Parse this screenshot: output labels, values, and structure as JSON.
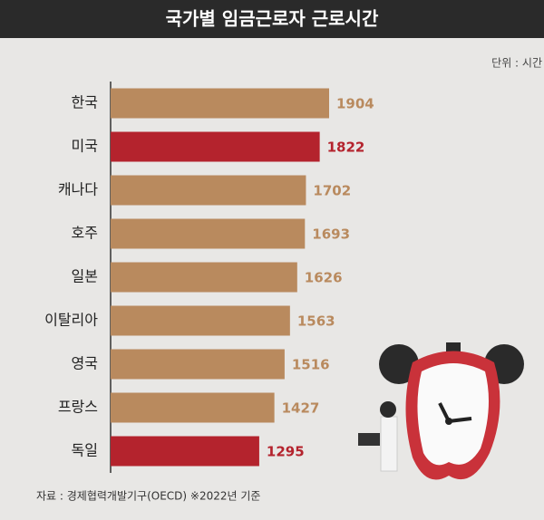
{
  "chart_data": {
    "type": "bar",
    "orientation": "horizontal",
    "title": "국가별 임금근로자 근로시간",
    "unit_note": "단위 : 시간",
    "source": "자료 : 경제협력개발기구(OECD) ※2022년 기준",
    "categories": [
      "한국",
      "미국",
      "캐나다",
      "호주",
      "일본",
      "이탈리아",
      "영국",
      "프랑스",
      "독일"
    ],
    "values": [
      1904,
      1822,
      1702,
      1693,
      1626,
      1563,
      1516,
      1427,
      1295
    ],
    "colors": [
      "#b98a5e",
      "#b4232d",
      "#b98a5e",
      "#b98a5e",
      "#b98a5e",
      "#b98a5e",
      "#b98a5e",
      "#b98a5e",
      "#b4232d"
    ]
  }
}
